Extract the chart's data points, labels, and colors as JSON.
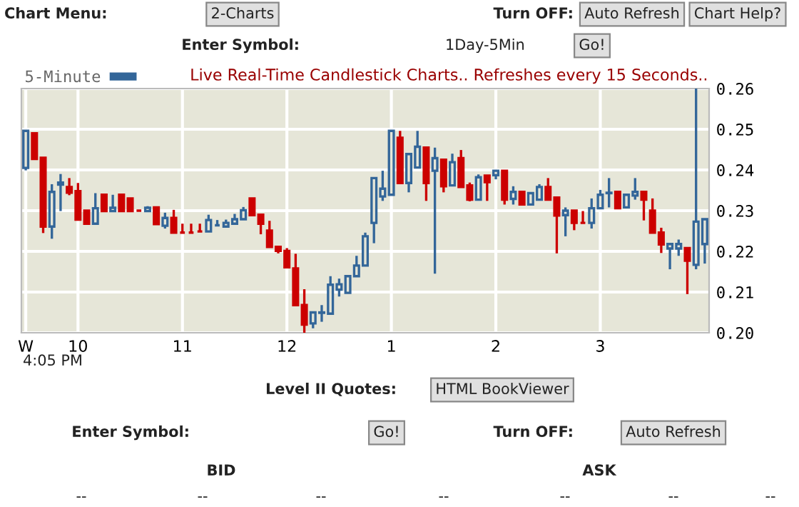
{
  "chart_data": {
    "type": "candlestick",
    "title": "Live Real-Time Candlestick Charts.. Refreshes every 15 Seconds..",
    "categories": [
      "W",
      null,
      null,
      null,
      null,
      null,
      "10",
      null,
      null,
      null,
      null,
      null,
      null,
      null,
      null,
      null,
      null,
      null,
      "11",
      null,
      null,
      null,
      null,
      null,
      null,
      null,
      null,
      null,
      null,
      null,
      "12",
      null,
      null,
      null,
      null,
      null,
      null,
      null,
      null,
      null,
      null,
      null,
      "1",
      null,
      null,
      null,
      null,
      null,
      null,
      null,
      null,
      null,
      null,
      null,
      "2",
      null,
      null,
      null,
      null,
      null,
      null,
      null,
      null,
      null,
      null,
      null,
      "3",
      null,
      null,
      null,
      null,
      null,
      null,
      null,
      null,
      null,
      null,
      null,
      null
    ],
    "series": [
      {
        "name": "5-Minute",
        "color": "#336699",
        "ohlc": [
          [
            0.2405,
            0.2497,
            0.2399,
            0.2496
          ],
          [
            0.249,
            0.249,
            0.2427,
            0.2427
          ],
          [
            0.243,
            0.243,
            0.2245,
            0.2261
          ],
          [
            0.2261,
            0.2365,
            0.2231,
            0.2346
          ],
          [
            0.2364,
            0.239,
            0.2299,
            0.2369
          ],
          [
            0.2358,
            0.238,
            0.2338,
            0.2344
          ],
          [
            0.2348,
            0.2368,
            0.2278,
            0.2278
          ],
          [
            0.23,
            0.23,
            0.2268,
            0.2268
          ],
          [
            0.2268,
            0.2343,
            0.2268,
            0.2306
          ],
          [
            0.2339,
            0.2339,
            0.2299,
            0.2299
          ],
          [
            0.2299,
            0.2339,
            0.2299,
            0.2307
          ],
          [
            0.2339,
            0.2339,
            0.2299,
            0.2299
          ],
          [
            0.233,
            0.233,
            0.2299,
            0.2299
          ],
          [
            0.23,
            0.23,
            0.23,
            0.23
          ],
          [
            0.2299,
            0.2311,
            0.2299,
            0.2307
          ],
          [
            0.2308,
            0.2308,
            0.2267,
            0.2267
          ],
          [
            0.2263,
            0.2295,
            0.2256,
            0.2282
          ],
          [
            0.2282,
            0.2302,
            0.2246,
            0.2246
          ],
          [
            0.2246,
            0.2268,
            0.2246,
            0.2246
          ],
          [
            0.2246,
            0.2268,
            0.2246,
            0.2246
          ],
          [
            0.2249,
            0.2268,
            0.2249,
            0.2249
          ],
          [
            0.2249,
            0.229,
            0.2249,
            0.2277
          ],
          [
            0.2264,
            0.2277,
            0.2264,
            0.2264
          ],
          [
            0.2261,
            0.2278,
            0.2261,
            0.227
          ],
          [
            0.2268,
            0.2292,
            0.2268,
            0.2279
          ],
          [
            0.2279,
            0.2309,
            0.2279,
            0.2301
          ],
          [
            0.233,
            0.233,
            0.2289,
            0.2289
          ],
          [
            0.229,
            0.229,
            0.2242,
            0.2268
          ],
          [
            0.2251,
            0.2275,
            0.2211,
            0.2211
          ],
          [
            0.2211,
            0.2211,
            0.2195,
            0.2201
          ],
          [
            0.2201,
            0.2208,
            0.2161,
            0.2161
          ],
          [
            0.2158,
            0.2194,
            0.2068,
            0.2068
          ],
          [
            0.2068,
            0.2107,
            0.2,
            0.202
          ],
          [
            0.2023,
            0.2052,
            0.2011,
            0.205
          ],
          [
            0.2049,
            0.2068,
            0.2027,
            0.205
          ],
          [
            0.2047,
            0.2139,
            0.2047,
            0.2118
          ],
          [
            0.2106,
            0.2133,
            0.2089,
            0.2119
          ],
          [
            0.2098,
            0.2139,
            0.2098,
            0.2139
          ],
          [
            0.2139,
            0.2189,
            0.2139,
            0.2165
          ],
          [
            0.2165,
            0.2246,
            0.2165,
            0.2237
          ],
          [
            0.227,
            0.238,
            0.222,
            0.238
          ],
          [
            0.2335,
            0.2398,
            0.2324,
            0.2354
          ],
          [
            0.2339,
            0.2496,
            0.2339,
            0.2496
          ],
          [
            0.2479,
            0.2496,
            0.2368,
            0.2368
          ],
          [
            0.2368,
            0.2439,
            0.2345,
            0.2439
          ],
          [
            0.2406,
            0.2496,
            0.2406,
            0.2457
          ],
          [
            0.2455,
            0.2455,
            0.2324,
            0.2368
          ],
          [
            0.2398,
            0.2455,
            0.2145,
            0.2429
          ],
          [
            0.2425,
            0.2425,
            0.2345,
            0.236
          ],
          [
            0.2362,
            0.244,
            0.2362,
            0.2419
          ],
          [
            0.2429,
            0.2449,
            0.2358,
            0.2358
          ],
          [
            0.2362,
            0.2369,
            0.2323,
            0.2327
          ],
          [
            0.2327,
            0.2389,
            0.2327,
            0.2382
          ],
          [
            0.2386,
            0.2386,
            0.2324,
            0.237
          ],
          [
            0.2387,
            0.2398,
            0.2377,
            0.2398
          ],
          [
            0.2398,
            0.2398,
            0.2315,
            0.2327
          ],
          [
            0.2329,
            0.236,
            0.2315,
            0.2346
          ],
          [
            0.2346,
            0.2346,
            0.2315,
            0.2315
          ],
          [
            0.2315,
            0.2343,
            0.2315,
            0.2343
          ],
          [
            0.2327,
            0.2365,
            0.2327,
            0.2358
          ],
          [
            0.2358,
            0.238,
            0.2327,
            0.2327
          ],
          [
            0.2332,
            0.2332,
            0.2195,
            0.2288
          ],
          [
            0.2289,
            0.2308,
            0.2237,
            0.23
          ],
          [
            0.23,
            0.23,
            0.2252,
            0.227
          ],
          [
            0.227,
            0.2299,
            0.227,
            0.227
          ],
          [
            0.227,
            0.233,
            0.2256,
            0.2306
          ],
          [
            0.2306,
            0.2351,
            0.2306,
            0.2339
          ],
          [
            0.2343,
            0.238,
            0.2308,
            0.2344
          ],
          [
            0.2346,
            0.2346,
            0.2306,
            0.2306
          ],
          [
            0.2308,
            0.2339,
            0.2308,
            0.2339
          ],
          [
            0.2337,
            0.238,
            0.2327,
            0.2346
          ],
          [
            0.2346,
            0.2346,
            0.2276,
            0.2327
          ],
          [
            0.23,
            0.233,
            0.2246,
            0.2246
          ],
          [
            0.2246,
            0.2258,
            0.2196,
            0.2217
          ],
          [
            0.2207,
            0.2218,
            0.2156,
            0.2218
          ],
          [
            0.2207,
            0.2229,
            0.2189,
            0.2218
          ],
          [
            0.2208,
            0.2208,
            0.2095,
            0.2177
          ],
          [
            0.2167,
            0.26,
            0.2156,
            0.2273
          ],
          [
            0.2218,
            0.2279,
            0.217,
            0.2279
          ]
        ],
        "colors": [
          "#336699",
          "#cc0000",
          "#cc0000",
          "#336699",
          "#336699",
          "#cc0000",
          "#cc0000",
          "#cc0000",
          "#336699",
          "#cc0000",
          "#336699",
          "#cc0000",
          "#cc0000",
          "#cc0000",
          "#336699",
          "#cc0000",
          "#336699",
          "#cc0000",
          "#cc0000",
          "#cc0000",
          "#cc0000",
          "#336699",
          "#336699",
          "#336699",
          "#336699",
          "#336699",
          "#cc0000",
          "#cc0000",
          "#cc0000",
          "#cc0000",
          "#cc0000",
          "#cc0000",
          "#cc0000",
          "#336699",
          "#336699",
          "#336699",
          "#336699",
          "#336699",
          "#336699",
          "#336699",
          "#336699",
          "#336699",
          "#336699",
          "#cc0000",
          "#336699",
          "#336699",
          "#cc0000",
          "#336699",
          "#cc0000",
          "#336699",
          "#cc0000",
          "#cc0000",
          "#336699",
          "#cc0000",
          "#336699",
          "#cc0000",
          "#336699",
          "#cc0000",
          "#336699",
          "#336699",
          "#cc0000",
          "#cc0000",
          "#336699",
          "#cc0000",
          "#cc0000",
          "#336699",
          "#336699",
          "#336699",
          "#cc0000",
          "#336699",
          "#336699",
          "#cc0000",
          "#cc0000",
          "#cc0000",
          "#336699",
          "#336699",
          "#cc0000",
          "#336699",
          "#336699"
        ]
      }
    ],
    "ylim": [
      0.2,
      0.26
    ],
    "yticks": [
      {
        "value": 0.2,
        "label": "0.20"
      },
      {
        "value": 0.21,
        "label": "0.21"
      },
      {
        "value": 0.22,
        "label": "0.22"
      },
      {
        "value": 0.23,
        "label": "0.23"
      },
      {
        "value": 0.24,
        "label": "0.24"
      },
      {
        "value": 0.25,
        "label": "0.25"
      },
      {
        "value": 0.26,
        "label": "0.26"
      }
    ],
    "grid": true,
    "legend": "top left",
    "annotations": [
      "Chart Menu:",
      "2-Charts",
      "Turn OFF:",
      "Auto Refresh",
      "Chart Help?",
      "Enter Symbol:",
      "1Day-5Min",
      "Go!",
      "4:05 PM",
      "Level II Quotes:",
      "HTML BookViewer",
      "Enter Symbol:",
      "Go!",
      "Turn OFF:",
      "Auto Refresh",
      "BID",
      "ASK",
      "--",
      "--",
      "--",
      "--",
      "--",
      "--",
      "--"
    ]
  }
}
